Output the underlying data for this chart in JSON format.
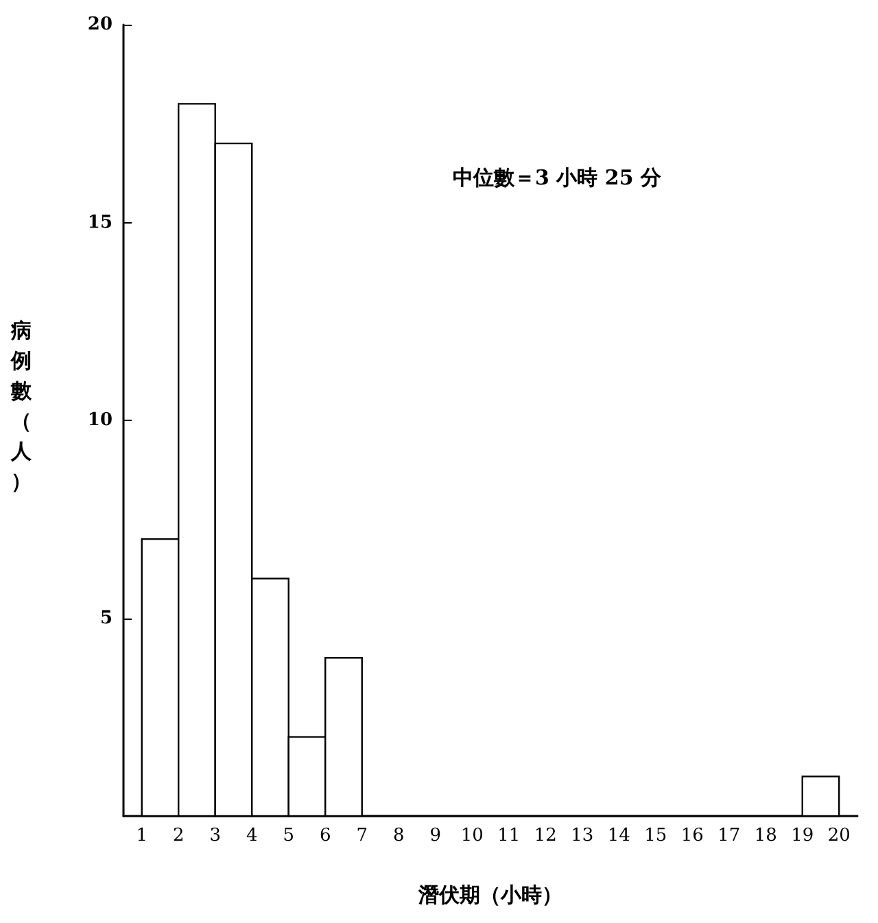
{
  "chart_data": {
    "type": "histogram",
    "xlabel": "潛伏期（小時）",
    "ylabel": "病例數（人）",
    "annotations": [
      "中位數＝3 小時 25 分"
    ],
    "bins": [
      1,
      2,
      3,
      4,
      5,
      6,
      7,
      8,
      9,
      10,
      11,
      12,
      13,
      14,
      15,
      16,
      17,
      18,
      19,
      20
    ],
    "values": [
      7,
      18,
      17,
      6,
      2,
      4,
      0,
      0,
      0,
      0,
      0,
      0,
      0,
      0,
      0,
      0,
      0,
      0,
      1
    ],
    "color": "#000000",
    "xlim": [
      0.5,
      20.5
    ],
    "xticks": [
      1,
      2,
      3,
      4,
      5,
      6,
      7,
      8,
      9,
      10,
      11,
      12,
      13,
      14,
      15,
      16,
      17,
      18,
      19,
      20
    ],
    "ylim": [
      0,
      20
    ],
    "yticks": [
      5,
      10,
      15,
      20
    ],
    "grid": false
  }
}
